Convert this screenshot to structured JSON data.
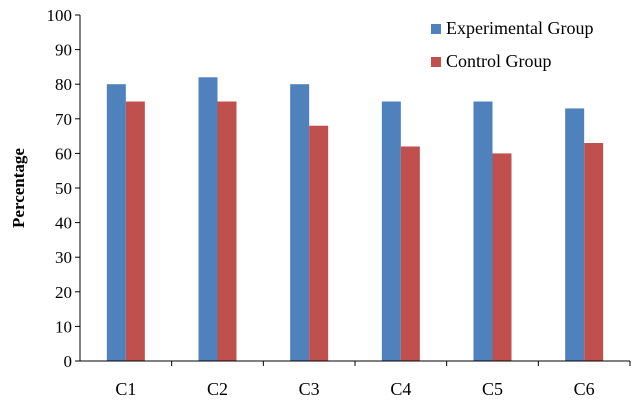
{
  "chart_data": {
    "type": "bar",
    "title": "",
    "xlabel": "",
    "ylabel": "Percentage",
    "ylim": [
      0,
      100
    ],
    "yticks": [
      0,
      10,
      20,
      30,
      40,
      50,
      60,
      70,
      80,
      90,
      100
    ],
    "grid": false,
    "legend_position": "top-right",
    "categories": [
      "C1",
      "C2",
      "C3",
      "C4",
      "C5",
      "C6"
    ],
    "series": [
      {
        "name": "Experimental Group",
        "color": "#4f81bd",
        "values": [
          80,
          82,
          80,
          75,
          75,
          73
        ]
      },
      {
        "name": "Control Group",
        "color": "#c0504d",
        "values": [
          75,
          75,
          68,
          62,
          60,
          63
        ]
      }
    ]
  }
}
